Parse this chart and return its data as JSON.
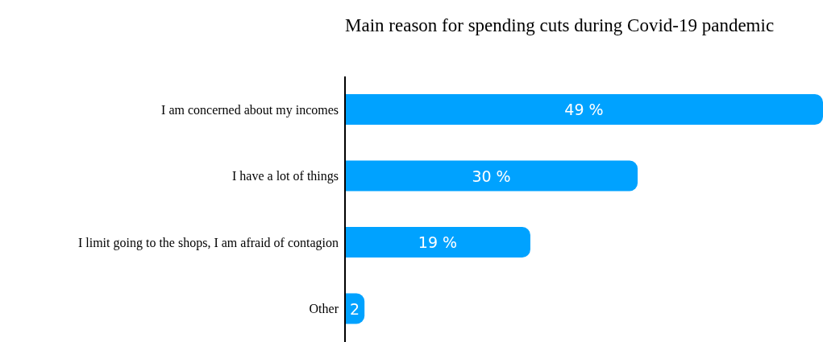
{
  "chart_data": {
    "type": "bar",
    "orientation": "horizontal",
    "title": "Main reason for spending cuts during Covid-19 pandemic",
    "categories": [
      "I am concerned about my incomes",
      "I have a lot of things",
      "I limit going to the shops, I am afraid of contagion",
      "Other"
    ],
    "values": [
      49,
      30,
      19,
      2
    ],
    "value_labels": [
      "49 %",
      "30 %",
      "19 %",
      "2"
    ],
    "color": "#00a2ff",
    "grid": false,
    "legend": false
  }
}
